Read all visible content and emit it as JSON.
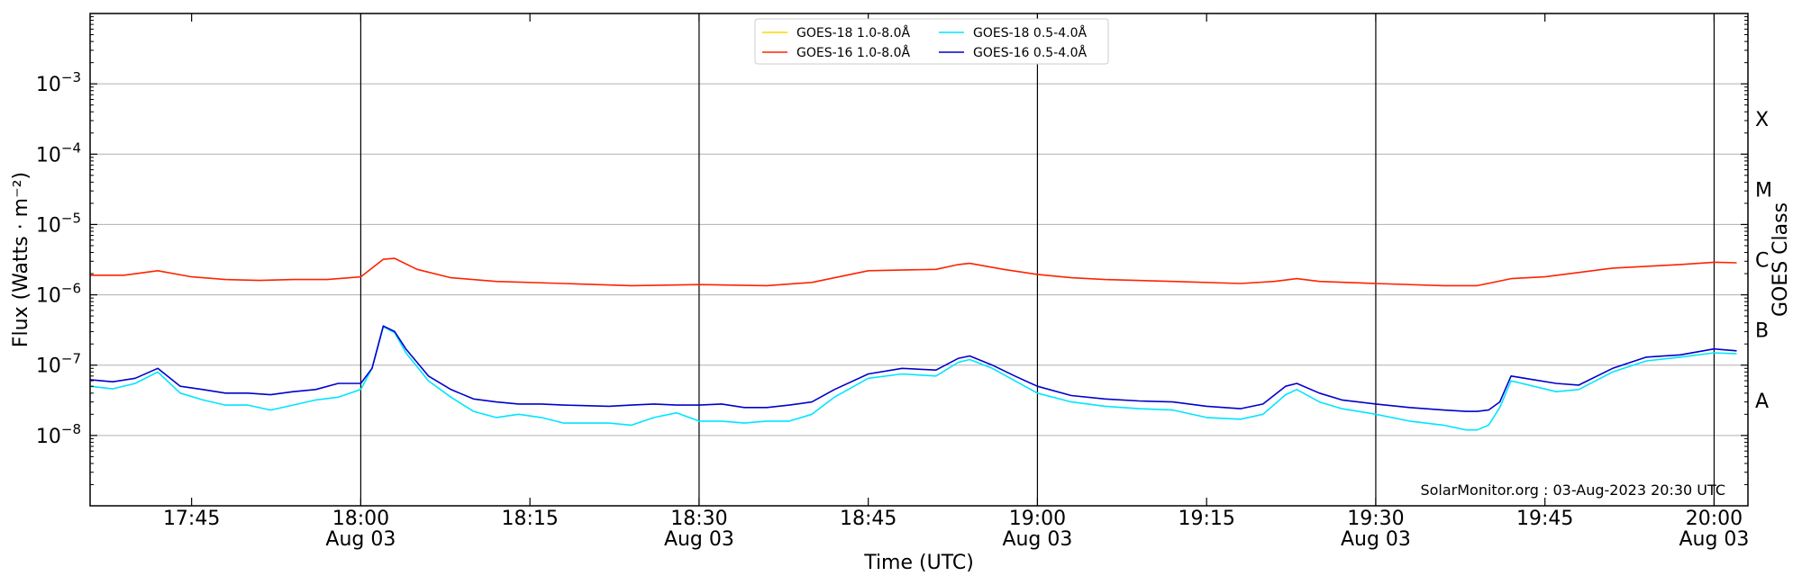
{
  "chart_data": {
    "type": "line",
    "title": "",
    "xlabel": "Time (UTC)",
    "ylabel": "Flux (Watts · m⁻²)",
    "ylabel_right": "GOES Class",
    "y_scale": "log",
    "ylim": [
      1e-09,
      0.01
    ],
    "xlim": [
      "2023-08-03 17:36",
      "2023-08-03 20:03"
    ],
    "y_ticks": [
      {
        "value": 1e-08,
        "mantissa": "10",
        "exponent": "−8"
      },
      {
        "value": 1e-07,
        "mantissa": "10",
        "exponent": "−7"
      },
      {
        "value": 1e-06,
        "mantissa": "10",
        "exponent": "−6"
      },
      {
        "value": 1e-05,
        "mantissa": "10",
        "exponent": "−5"
      },
      {
        "value": 0.0001,
        "mantissa": "10",
        "exponent": "−4"
      },
      {
        "value": 0.001,
        "mantissa": "10",
        "exponent": "−3"
      }
    ],
    "x_ticks": [
      {
        "time": "17:45",
        "label": "17:45",
        "date": ""
      },
      {
        "time": "18:00",
        "label": "18:00",
        "date": "Aug 03"
      },
      {
        "time": "18:15",
        "label": "18:15",
        "date": ""
      },
      {
        "time": "18:30",
        "label": "18:30",
        "date": "Aug 03"
      },
      {
        "time": "18:45",
        "label": "18:45",
        "date": ""
      },
      {
        "time": "19:00",
        "label": "19:00",
        "date": "Aug 03"
      },
      {
        "time": "19:15",
        "label": "19:15",
        "date": ""
      },
      {
        "time": "19:30",
        "label": "19:30",
        "date": "Aug 03"
      },
      {
        "time": "19:45",
        "label": "19:45",
        "date": ""
      },
      {
        "time": "20:00",
        "label": "20:00",
        "date": "Aug 03"
      }
    ],
    "class_levels": [
      {
        "label": "A",
        "value": 3.16e-08
      },
      {
        "label": "B",
        "value": 3.16e-07
      },
      {
        "label": "C",
        "value": 3.16e-06
      },
      {
        "label": "M",
        "value": 3.16e-05
      },
      {
        "label": "X",
        "value": 0.000316
      }
    ],
    "grid": {
      "y": true,
      "x_lines_at": [
        "18:00",
        "18:30",
        "19:00",
        "19:30",
        "20:00"
      ]
    },
    "legend": {
      "position": "top-center",
      "columns": 2
    },
    "series": [
      {
        "name": "GOES-18 1.0-8.0Å",
        "color": "#ffd700",
        "x": [],
        "y": []
      },
      {
        "name": "GOES-16 1.0-8.0Å",
        "color": "#ff2200",
        "x": [
          "17:36",
          "17:39",
          "17:42",
          "17:45",
          "17:48",
          "17:51",
          "17:54",
          "17:57",
          "18:00",
          "18:02",
          "18:03",
          "18:05",
          "18:08",
          "18:12",
          "18:18",
          "18:24",
          "18:30",
          "18:36",
          "18:40",
          "18:45",
          "18:51",
          "18:53",
          "18:54",
          "18:57",
          "19:00",
          "19:03",
          "19:06",
          "19:12",
          "19:18",
          "19:21",
          "19:23",
          "19:25",
          "19:30",
          "19:36",
          "19:39",
          "19:42",
          "19:45",
          "19:51",
          "19:57",
          "20:00",
          "20:02"
        ],
        "y": [
          1.9e-06,
          1.9e-06,
          2.2e-06,
          1.8e-06,
          1.65e-06,
          1.6e-06,
          1.65e-06,
          1.65e-06,
          1.8e-06,
          3.2e-06,
          3.3e-06,
          2.3e-06,
          1.75e-06,
          1.55e-06,
          1.45e-06,
          1.35e-06,
          1.4e-06,
          1.35e-06,
          1.5e-06,
          2.2e-06,
          2.3e-06,
          2.7e-06,
          2.8e-06,
          2.3e-06,
          1.95e-06,
          1.75e-06,
          1.65e-06,
          1.55e-06,
          1.45e-06,
          1.55e-06,
          1.7e-06,
          1.55e-06,
          1.45e-06,
          1.35e-06,
          1.35e-06,
          1.7e-06,
          1.8e-06,
          2.4e-06,
          2.7e-06,
          2.9e-06,
          2.85e-06
        ]
      },
      {
        "name": "GOES-18 0.5-4.0Å",
        "color": "#00e5ff",
        "x": [
          "17:36",
          "17:38",
          "17:40",
          "17:42",
          "17:44",
          "17:46",
          "17:48",
          "17:50",
          "17:52",
          "17:54",
          "17:56",
          "17:58",
          "18:00",
          "18:01",
          "18:02",
          "18:03",
          "18:04",
          "18:06",
          "18:08",
          "18:10",
          "18:12",
          "18:14",
          "18:16",
          "18:18",
          "18:22",
          "18:24",
          "18:26",
          "18:28",
          "18:30",
          "18:32",
          "18:34",
          "18:36",
          "18:38",
          "18:40",
          "18:42",
          "18:45",
          "18:48",
          "18:51",
          "18:53",
          "18:54",
          "18:56",
          "18:58",
          "19:00",
          "19:03",
          "19:06",
          "19:09",
          "19:12",
          "19:15",
          "19:18",
          "19:20",
          "19:22",
          "19:23",
          "19:25",
          "19:27",
          "19:30",
          "19:33",
          "19:36",
          "19:38",
          "19:39",
          "19:40",
          "19:41",
          "19:42",
          "19:44",
          "19:46",
          "19:48",
          "19:51",
          "19:54",
          "19:57",
          "20:00",
          "20:02"
        ],
        "y": [
          5e-08,
          4.6e-08,
          5.5e-08,
          8e-08,
          4e-08,
          3.2e-08,
          2.7e-08,
          2.7e-08,
          2.3e-08,
          2.7e-08,
          3.2e-08,
          3.5e-08,
          4.5e-08,
          9e-08,
          3.5e-07,
          2.9e-07,
          1.5e-07,
          6e-08,
          3.5e-08,
          2.2e-08,
          1.8e-08,
          2e-08,
          1.8e-08,
          1.5e-08,
          1.5e-08,
          1.4e-08,
          1.8e-08,
          2.1e-08,
          1.6e-08,
          1.6e-08,
          1.5e-08,
          1.6e-08,
          1.6e-08,
          2e-08,
          3.5e-08,
          6.5e-08,
          7.5e-08,
          7e-08,
          1.1e-07,
          1.2e-07,
          9e-08,
          6e-08,
          4e-08,
          3e-08,
          2.6e-08,
          2.4e-08,
          2.3e-08,
          1.8e-08,
          1.7e-08,
          2e-08,
          3.8e-08,
          4.5e-08,
          3e-08,
          2.4e-08,
          2e-08,
          1.6e-08,
          1.4e-08,
          1.2e-08,
          1.2e-08,
          1.4e-08,
          2.5e-08,
          6e-08,
          5e-08,
          4.2e-08,
          4.5e-08,
          8e-08,
          1.15e-07,
          1.3e-07,
          1.5e-07,
          1.45e-07
        ]
      },
      {
        "name": "GOES-16 0.5-4.0Å",
        "color": "#0000cc",
        "x": [
          "17:36",
          "17:38",
          "17:40",
          "17:42",
          "17:44",
          "17:46",
          "17:48",
          "17:50",
          "17:52",
          "17:54",
          "17:56",
          "17:58",
          "18:00",
          "18:01",
          "18:02",
          "18:03",
          "18:04",
          "18:06",
          "18:08",
          "18:10",
          "18:12",
          "18:14",
          "18:16",
          "18:18",
          "18:22",
          "18:24",
          "18:26",
          "18:28",
          "18:30",
          "18:32",
          "18:34",
          "18:36",
          "18:38",
          "18:40",
          "18:42",
          "18:45",
          "18:48",
          "18:51",
          "18:53",
          "18:54",
          "18:56",
          "18:58",
          "19:00",
          "19:03",
          "19:06",
          "19:09",
          "19:12",
          "19:15",
          "19:18",
          "19:20",
          "19:22",
          "19:23",
          "19:25",
          "19:27",
          "19:30",
          "19:33",
          "19:36",
          "19:38",
          "19:39",
          "19:40",
          "19:41",
          "19:42",
          "19:44",
          "19:46",
          "19:48",
          "19:51",
          "19:54",
          "19:57",
          "20:00",
          "20:02"
        ],
        "y": [
          6.2e-08,
          5.8e-08,
          6.5e-08,
          9e-08,
          5e-08,
          4.5e-08,
          4e-08,
          4e-08,
          3.8e-08,
          4.2e-08,
          4.5e-08,
          5.5e-08,
          5.5e-08,
          9e-08,
          3.6e-07,
          3e-07,
          1.7e-07,
          7e-08,
          4.5e-08,
          3.3e-08,
          3e-08,
          2.8e-08,
          2.8e-08,
          2.7e-08,
          2.6e-08,
          2.7e-08,
          2.8e-08,
          2.7e-08,
          2.7e-08,
          2.8e-08,
          2.5e-08,
          2.5e-08,
          2.7e-08,
          3e-08,
          4.5e-08,
          7.5e-08,
          9e-08,
          8.5e-08,
          1.25e-07,
          1.35e-07,
          1e-07,
          7e-08,
          5e-08,
          3.7e-08,
          3.3e-08,
          3.1e-08,
          3e-08,
          2.6e-08,
          2.4e-08,
          2.8e-08,
          5e-08,
          5.5e-08,
          4e-08,
          3.2e-08,
          2.8e-08,
          2.5e-08,
          2.3e-08,
          2.2e-08,
          2.2e-08,
          2.3e-08,
          3e-08,
          7e-08,
          6.2e-08,
          5.5e-08,
          5.2e-08,
          9e-08,
          1.3e-07,
          1.4e-07,
          1.7e-07,
          1.6e-07
        ]
      }
    ],
    "annotation": "SolarMonitor.org : 03-Aug-2023 20:30 UTC"
  }
}
